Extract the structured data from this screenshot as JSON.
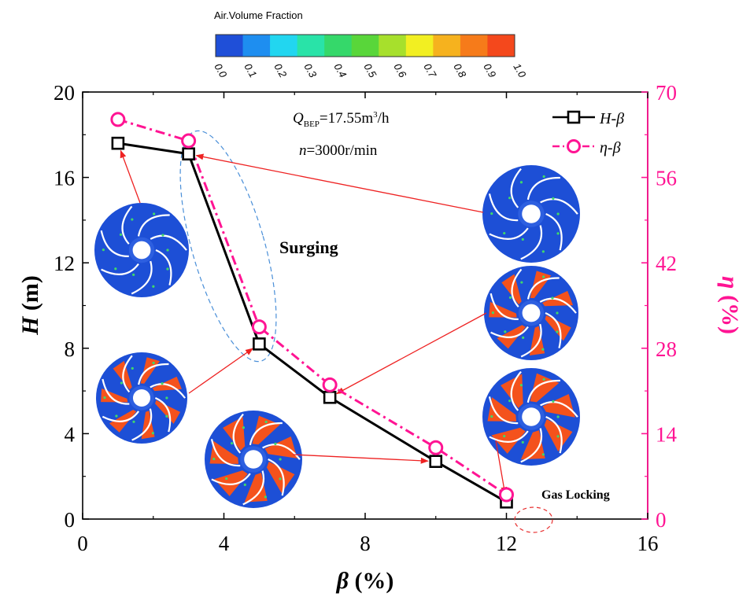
{
  "colorbar": {
    "title": "Air.Volume Fraction",
    "labels": [
      "0.0",
      "0.1",
      "0.2",
      "0.3",
      "0.4",
      "0.5",
      "0.6",
      "0.7",
      "0.8",
      "0.9",
      "1.0"
    ],
    "colors": [
      "#1f4fd8",
      "#1e8ef0",
      "#22d6f0",
      "#29e3a8",
      "#35d86a",
      "#59d63a",
      "#a7e02c",
      "#f2ef22",
      "#f6b21e",
      "#f67b1a",
      "#f4481c"
    ]
  },
  "chart_data": {
    "type": "line",
    "x": [
      1,
      3,
      5,
      7,
      10,
      12
    ],
    "series": [
      {
        "name": "H-β",
        "axis": "left",
        "values": [
          17.6,
          17.1,
          8.2,
          5.7,
          2.7,
          0.8
        ],
        "color": "#000000",
        "marker": "square",
        "line": "solid"
      },
      {
        "name": "η-β",
        "axis": "right",
        "values": [
          65.5,
          62.0,
          31.5,
          22.0,
          11.7,
          4.0
        ],
        "color": "#ff1493",
        "marker": "circle",
        "line": "dash-dot"
      }
    ],
    "xlabel": "β (%)",
    "ylabel_left": "H (m)",
    "ylabel_right": "η (%)",
    "xlim": [
      0,
      16
    ],
    "ylim_left": [
      0,
      20
    ],
    "ylim_right": [
      0,
      70
    ],
    "xticks": [
      0,
      4,
      8,
      12,
      16
    ],
    "yticks_left": [
      0,
      4,
      8,
      12,
      16,
      20
    ],
    "yticks_right": [
      0,
      14,
      28,
      42,
      56,
      70
    ],
    "legend_position": "top-right",
    "annotations": {
      "q_bep_prefix": "Q",
      "q_bep_sub": "BEP",
      "q_bep_value": "=17.55m",
      "q_bep_sup": "3",
      "q_bep_unit": "/h",
      "speed_prefix": "n",
      "speed_value": "=3000r/min",
      "surging": "Surging",
      "gas_locking": "Gas Locking"
    }
  },
  "labels": {
    "left_axis_letter": "H",
    "left_axis_unit": " (m)",
    "right_axis_letter": "η",
    "right_axis_unit": " (%)",
    "x_axis_letter": "β",
    "x_axis_unit": " (%)",
    "legend_h_letter": "H",
    "legend_h_dash": "-",
    "legend_h_beta": "β",
    "legend_eta_letter": "η",
    "legend_eta_dash": "-",
    "legend_eta_beta": "β"
  },
  "impellers": [
    {
      "name": "impeller-beta-1",
      "air_fraction": "low",
      "target_point": 0
    },
    {
      "name": "impeller-beta-3",
      "air_fraction": "low",
      "target_point": 1
    },
    {
      "name": "impeller-beta-5",
      "air_fraction": "medium",
      "target_point": 2
    },
    {
      "name": "impeller-beta-7",
      "air_fraction": "medium",
      "target_point": 3
    },
    {
      "name": "impeller-beta-10",
      "air_fraction": "high",
      "target_point": 4
    },
    {
      "name": "impeller-beta-12",
      "air_fraction": "high",
      "target_point": 5
    }
  ]
}
